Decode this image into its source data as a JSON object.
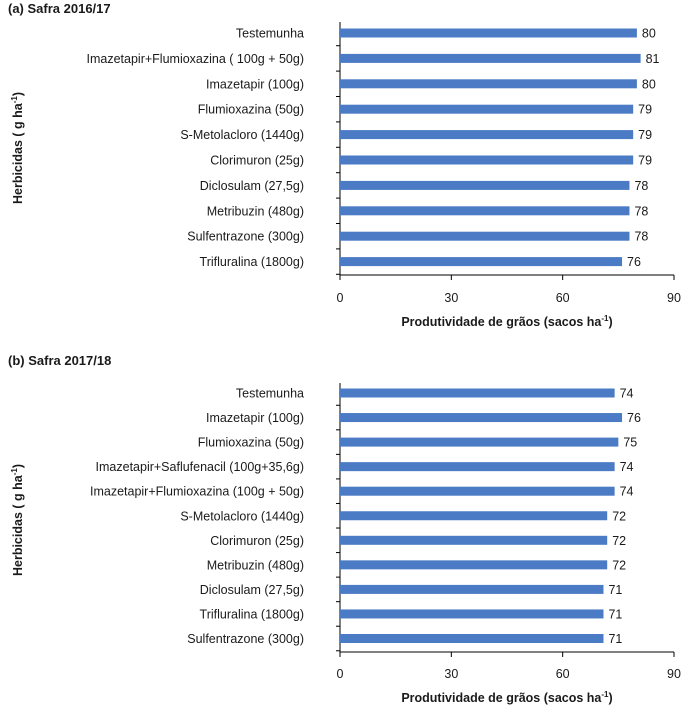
{
  "colors": {
    "bar": "#4a7bc4",
    "axis": "#000000",
    "text": "#1a1a1a"
  },
  "chart_data": [
    {
      "type": "bar",
      "orientation": "horizontal",
      "title": "(a) Safra 2016/17",
      "xlabel": "Produtividade de grãos (sacos ha",
      "xlabel_sup": "-1",
      "xlabel_end": ")",
      "ylabel": "Herbicidas ( g ha",
      "ylabel_sup": "-1",
      "ylabel_end": ")",
      "xlim": [
        0,
        90
      ],
      "xticks": [
        "0",
        "30",
        "60",
        "90"
      ],
      "categories": [
        "Testemunha",
        "Imazetapir+Flumioxazina (  100g  + 50g)",
        "Imazetapir (100g)",
        "Flumioxazina (50g)",
        "S-Metolacloro (1440g)",
        "Clorimuron (25g)",
        "Diclosulam (27,5g)",
        "Metribuzin (480g)",
        "Sulfentrazone (300g)",
        "Trifluralina (1800g)"
      ],
      "values": [
        80,
        81,
        80,
        79,
        79,
        79,
        78,
        78,
        78,
        76
      ],
      "value_labels": [
        "80",
        "81",
        "80",
        "79",
        "79",
        "79",
        "78",
        "78",
        "78",
        "76"
      ]
    },
    {
      "type": "bar",
      "orientation": "horizontal",
      "title": "(b) Safra 2017/18",
      "xlabel": "Produtividade de grãos (sacos ha",
      "xlabel_sup": "-1",
      "xlabel_end": ")",
      "ylabel": "Herbicidas ( g ha",
      "ylabel_sup": "-1",
      "ylabel_end": ")",
      "xlim": [
        0,
        90
      ],
      "xticks": [
        "0",
        "30",
        "60",
        "90"
      ],
      "categories": [
        "Testemunha",
        "Imazetapir (100g)",
        "Flumioxazina (50g)",
        "Imazetapir+Saflufenacil (100g+35,6g)",
        "Imazetapir+Flumioxazina (100g + 50g)",
        "S-Metolacloro (1440g)",
        "Clorimuron (25g)",
        "Metribuzin (480g)",
        "Diclosulam (27,5g)",
        "Trifluralina (1800g)",
        "Sulfentrazone (300g)"
      ],
      "values": [
        74,
        76,
        75,
        74,
        74,
        72,
        72,
        72,
        71,
        71,
        71
      ],
      "value_labels": [
        "74",
        "76",
        "75",
        "74",
        "74",
        "72",
        "72",
        "72",
        "71",
        "71",
        "71"
      ]
    }
  ]
}
